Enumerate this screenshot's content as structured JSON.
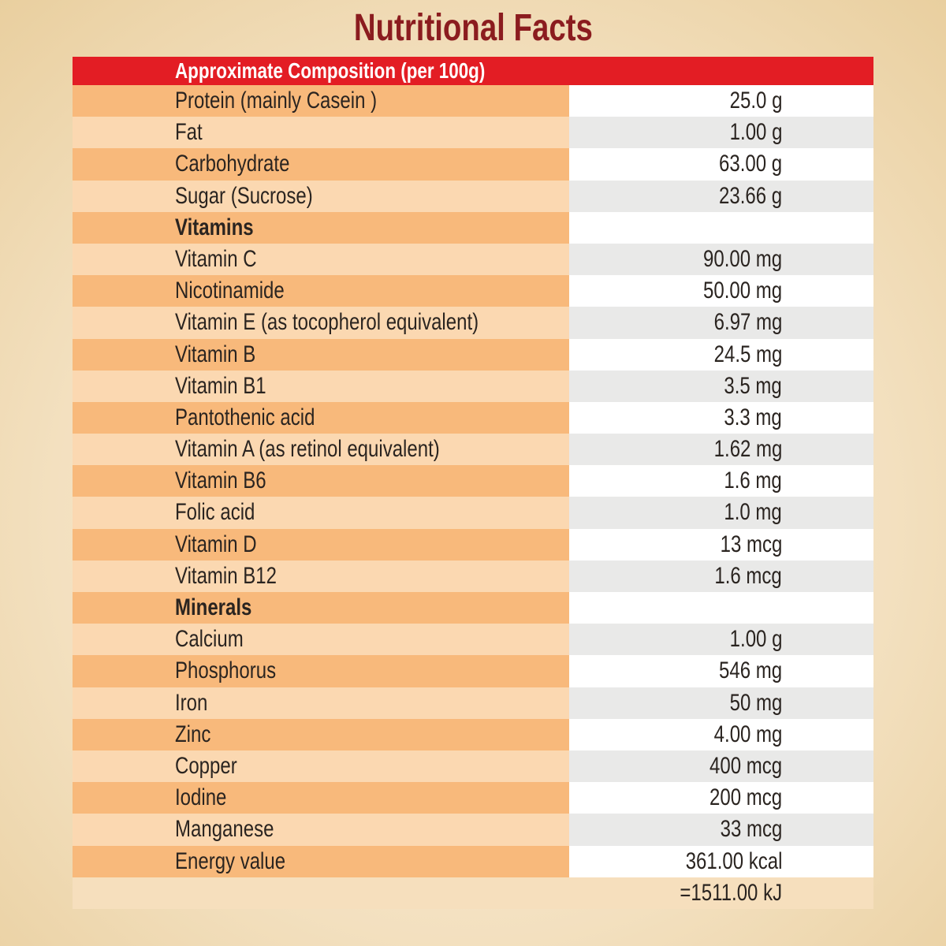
{
  "title": "Nutritional Facts",
  "table": {
    "header": "Approximate Composition (per 100g)",
    "rows": [
      {
        "label": "Protein (mainly Casein )",
        "value": "25.0 g"
      },
      {
        "label": "Fat",
        "value": "1.00 g"
      },
      {
        "label": "Carbohydrate",
        "value": "63.00 g"
      },
      {
        "label": "Sugar (Sucrose)",
        "value": "23.66 g"
      },
      {
        "label": "Vitamins"
      },
      {
        "label": "Vitamin C",
        "value": "90.00 mg"
      },
      {
        "label": "Nicotinamide",
        "value": "50.00 mg"
      },
      {
        "label": "Vitamin E (as tocopherol equivalent)",
        "value": "6.97 mg"
      },
      {
        "label": "Vitamin B",
        "value": "24.5 mg"
      },
      {
        "label": "Vitamin B1",
        "value": "3.5 mg"
      },
      {
        "label": "Pantothenic acid",
        "value": "3.3 mg"
      },
      {
        "label": "Vitamin A (as retinol equivalent)",
        "value": "1.62 mg"
      },
      {
        "label": "Vitamin B6",
        "value": "1.6 mg"
      },
      {
        "label": "Folic acid",
        "value": "1.0 mg"
      },
      {
        "label": "Vitamin D",
        "value": "13 mcg"
      },
      {
        "label": "Vitamin B12",
        "value": "1.6 mcg"
      },
      {
        "label": "Minerals"
      },
      {
        "label": "Calcium",
        "value": "1.00 g"
      },
      {
        "label": "Phosphorus",
        "value": "546 mg"
      },
      {
        "label": "Iron",
        "value": "50 mg"
      },
      {
        "label": "Zinc",
        "value": "4.00 mg"
      },
      {
        "label": "Copper",
        "value": "400 mcg"
      },
      {
        "label": "Iodine",
        "value": "200 mcg"
      },
      {
        "label": "Manganese",
        "value": "33 mcg"
      },
      {
        "label": "Energy value",
        "value": "361.00 kcal"
      },
      {
        "value": "=1511.00 kJ"
      }
    ]
  }
}
